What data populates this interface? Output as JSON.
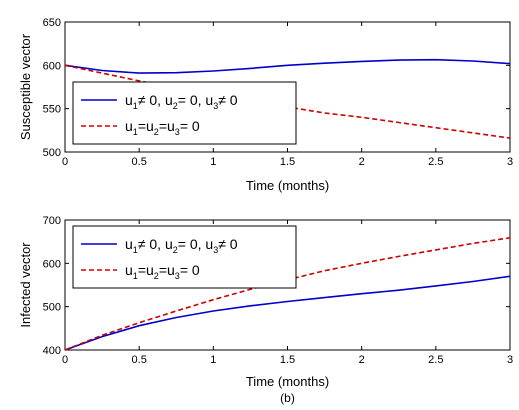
{
  "chart_data": [
    {
      "type": "line",
      "title": "",
      "xlabel": "Time (months)",
      "ylabel": "Susceptible vector",
      "xlim": [
        0,
        3
      ],
      "ylim": [
        500,
        650
      ],
      "xticks": [
        "0",
        "0.5",
        "1",
        "1.5",
        "2",
        "2.5",
        "3"
      ],
      "yticks": [
        "500",
        "550",
        "600",
        "650"
      ],
      "legend_position": "lower-left",
      "x": [
        0,
        0.25,
        0.5,
        0.75,
        1,
        1.25,
        1.5,
        1.75,
        2,
        2.25,
        2.5,
        2.75,
        3
      ],
      "series": [
        {
          "name": "u1≠ 0, u2= 0, u3≠ 0",
          "name_parts": [
            [
              "u",
              "1",
              "≠ 0, "
            ],
            [
              "u",
              "2",
              "= 0, "
            ],
            [
              "u",
              "3",
              "≠ 0"
            ]
          ],
          "color": "#0000cc",
          "dash": "solid",
          "values": [
            600,
            594,
            591,
            591.5,
            593.5,
            596.5,
            600,
            602.5,
            604.5,
            606,
            606.5,
            605,
            602
          ]
        },
        {
          "name": "u1=u2=u3= 0",
          "name_parts": [
            [
              "u",
              "1",
              "="
            ],
            [
              "u",
              "2",
              "="
            ],
            [
              "u",
              "3",
              "= 0"
            ]
          ],
          "color": "#cc0000",
          "dash": "dashed",
          "values": [
            600,
            591,
            582,
            574,
            566,
            559,
            552,
            545,
            540,
            534,
            528,
            522,
            516
          ]
        }
      ]
    },
    {
      "type": "line",
      "title": "",
      "xlabel": "Time (months)",
      "ylabel": "Infected vector",
      "xlim": [
        0,
        3
      ],
      "ylim": [
        400,
        700
      ],
      "xticks": [
        "0",
        "0.5",
        "1",
        "1.5",
        "2",
        "2.5",
        "3"
      ],
      "yticks": [
        "400",
        "500",
        "600",
        "700"
      ],
      "legend_position": "top-left",
      "caption": "(b)",
      "x": [
        0,
        0.25,
        0.5,
        0.75,
        1,
        1.25,
        1.5,
        1.75,
        2,
        2.25,
        2.5,
        2.75,
        3
      ],
      "series": [
        {
          "name": "u1≠ 0, u2= 0, u3≠ 0",
          "name_parts": [
            [
              "u",
              "1",
              "≠ 0, "
            ],
            [
              "u",
              "2",
              "= 0, "
            ],
            [
              "u",
              "3",
              "≠ 0"
            ]
          ],
          "color": "#0000cc",
          "dash": "solid",
          "values": [
            400,
            431,
            456,
            475,
            490,
            502,
            512,
            521,
            530,
            538,
            548,
            558,
            570
          ]
        },
        {
          "name": "u1=u2=u3= 0",
          "name_parts": [
            [
              "u",
              "1",
              "="
            ],
            [
              "u",
              "2",
              "="
            ],
            [
              "u",
              "3",
              "= 0"
            ]
          ],
          "color": "#cc0000",
          "dash": "dashed",
          "values": [
            400,
            434,
            463,
            490,
            516,
            540,
            562,
            583,
            600,
            616,
            631,
            646,
            659
          ]
        }
      ]
    }
  ]
}
